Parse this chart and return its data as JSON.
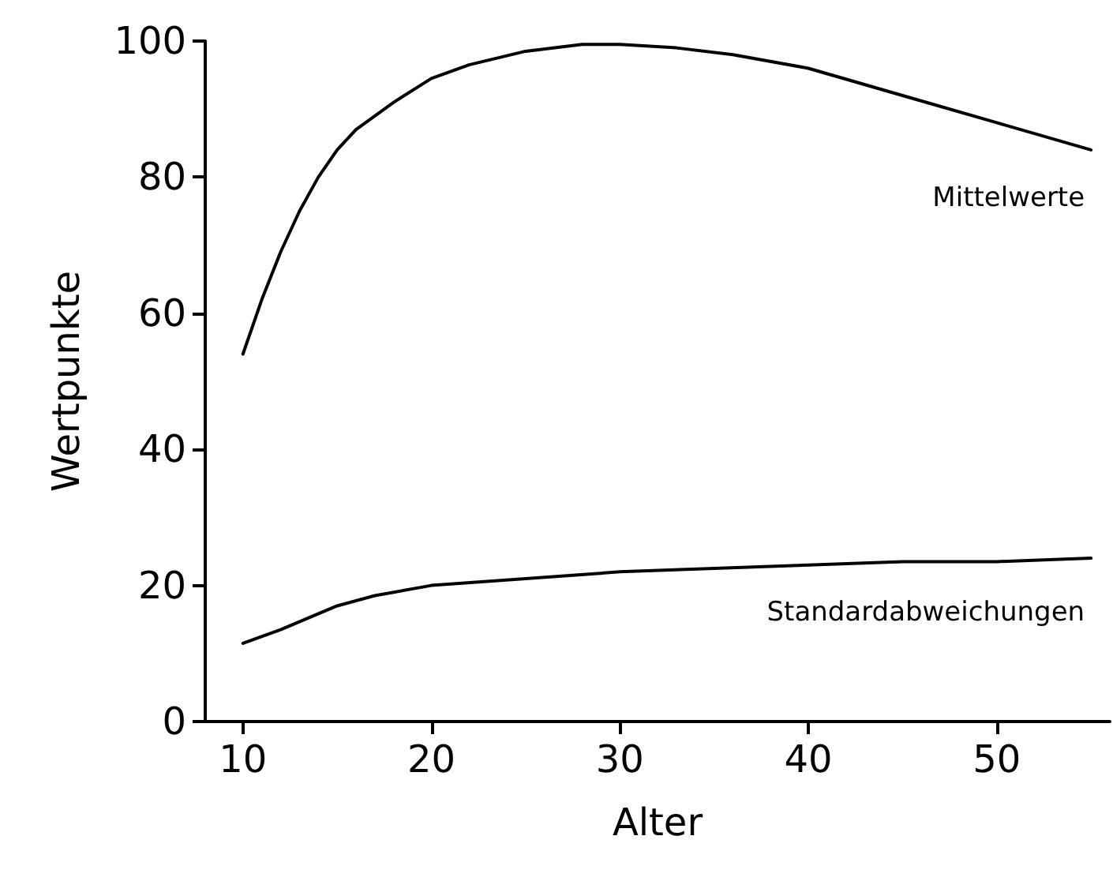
{
  "chart_data": {
    "type": "line",
    "xlabel": "Alter",
    "ylabel": "Wertpunkte",
    "xlim": [
      8,
      56
    ],
    "xticks": [
      10,
      20,
      30,
      40,
      50
    ],
    "ylim": [
      0,
      100
    ],
    "yticks": [
      0,
      20,
      40,
      60,
      80,
      100
    ],
    "grid": false,
    "legend": false,
    "marker": "none",
    "line_style": "solid",
    "series": [
      {
        "name": "Mittelwerte",
        "color": "#000000",
        "x": [
          10,
          11,
          12,
          13,
          14,
          15,
          16,
          17,
          18,
          20,
          22,
          25,
          28,
          30,
          33,
          36,
          40,
          45,
          50,
          55
        ],
        "values": [
          54,
          62,
          69,
          75,
          80,
          84,
          87,
          89,
          91,
          94.5,
          96.5,
          98.5,
          99.5,
          99.5,
          99,
          98,
          96,
          92,
          88,
          84
        ]
      },
      {
        "name": "Standardabweichungen",
        "color": "#000000",
        "x": [
          10,
          12,
          15,
          17,
          20,
          25,
          30,
          35,
          40,
          45,
          50,
          55
        ],
        "values": [
          11.5,
          13.5,
          17,
          18.5,
          20,
          21,
          22,
          22.5,
          23,
          23.5,
          23.5,
          24
        ]
      }
    ]
  }
}
